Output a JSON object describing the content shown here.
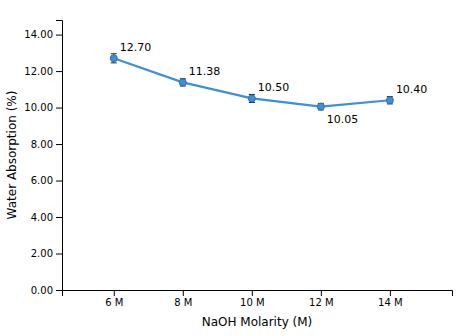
{
  "chart_data": {
    "type": "line",
    "xlabel": "NaOH Molarity (M)",
    "ylabel": "Water Absorption (%)",
    "x": [
      6,
      8,
      10,
      12,
      14
    ],
    "values": [
      12.7,
      11.38,
      10.5,
      10.05,
      10.4
    ],
    "errors": [
      0.25,
      0.2,
      0.22,
      0.18,
      0.2
    ],
    "value_labels": [
      "12.70",
      "11.38",
      "10.50",
      "10.05",
      "10.40"
    ],
    "data_labels": true,
    "color": "#3b8fdb",
    "marker": "o",
    "line_style": "solid",
    "grid": false,
    "xlim": [
      4.5,
      15.8
    ],
    "xticks": [
      {
        "value": 6,
        "label": "6 M"
      },
      {
        "value": 8,
        "label": "8 M"
      },
      {
        "value": 10,
        "label": "10 M"
      },
      {
        "value": 12,
        "label": "12 M"
      },
      {
        "value": 14,
        "label": "14 M"
      }
    ],
    "ylim": [
      0,
      14.8
    ],
    "yticks": [
      {
        "value": 0,
        "label": "0.00"
      },
      {
        "value": 2,
        "label": "2.00"
      },
      {
        "value": 4,
        "label": "4.00"
      },
      {
        "value": 6,
        "label": "6.00"
      },
      {
        "value": 8,
        "label": "8.00"
      },
      {
        "value": 10,
        "label": "10.00"
      },
      {
        "value": 12,
        "label": "12.00"
      },
      {
        "value": 14,
        "label": "14.00"
      }
    ]
  }
}
